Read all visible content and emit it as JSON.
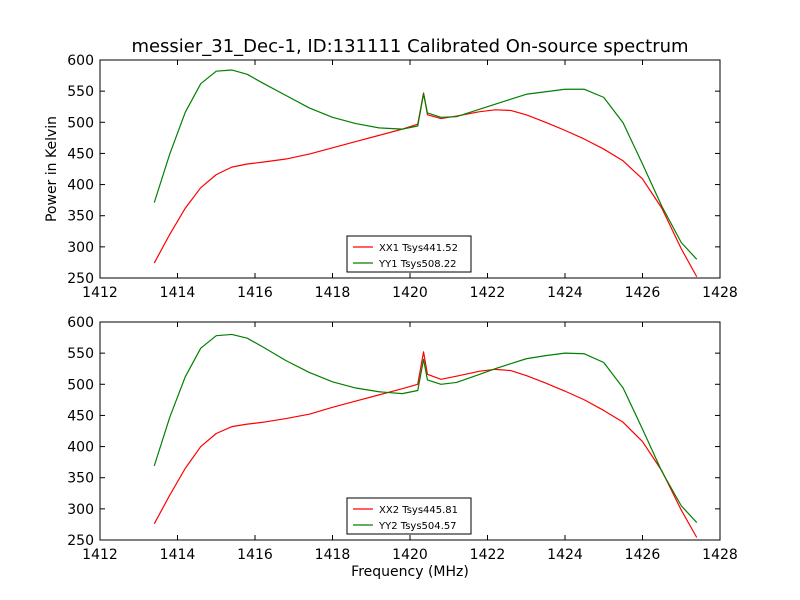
{
  "chart_data": [
    {
      "type": "line",
      "title": "messier_31_Dec-1, ID:131111 Calibrated On-source spectrum",
      "xlabel": "",
      "ylabel": "Power in Kelvin",
      "xlim": [
        1412,
        1428
      ],
      "ylim": [
        250,
        600
      ],
      "xticks": [
        1412,
        1414,
        1416,
        1418,
        1420,
        1422,
        1424,
        1426,
        1428
      ],
      "yticks": [
        250,
        300,
        350,
        400,
        450,
        500,
        550,
        600
      ],
      "grid": false,
      "legend_position": "bottom-center",
      "series": [
        {
          "name": "XX1 Tsys441.52",
          "color": "#ff0000",
          "x": [
            1413.4,
            1413.8,
            1414.2,
            1414.6,
            1415.0,
            1415.4,
            1415.8,
            1416.2,
            1416.8,
            1417.4,
            1418.0,
            1418.6,
            1419.2,
            1419.8,
            1420.2,
            1420.35,
            1420.45,
            1420.8,
            1421.2,
            1421.8,
            1422.2,
            1422.6,
            1423.0,
            1423.5,
            1424.0,
            1424.5,
            1425.0,
            1425.5,
            1426.0,
            1426.5,
            1427.0,
            1427.4
          ],
          "y": [
            274,
            320,
            362,
            395,
            416,
            428,
            433,
            436,
            441,
            449,
            459,
            469,
            479,
            489,
            497,
            547,
            512,
            506,
            510,
            517,
            520,
            519,
            512,
            500,
            487,
            473,
            457,
            438,
            409,
            362,
            297,
            252
          ]
        },
        {
          "name": "YY1 Tsys508.22",
          "color": "#008000",
          "x": [
            1413.4,
            1413.8,
            1414.2,
            1414.6,
            1415.0,
            1415.4,
            1415.8,
            1416.2,
            1416.8,
            1417.4,
            1418.0,
            1418.6,
            1419.2,
            1419.8,
            1420.2,
            1420.35,
            1420.45,
            1420.8,
            1421.2,
            1421.8,
            1422.2,
            1422.6,
            1423.0,
            1423.5,
            1424.0,
            1424.5,
            1425.0,
            1425.5,
            1426.0,
            1426.5,
            1427.0,
            1427.4
          ],
          "y": [
            371,
            449,
            516,
            562,
            582,
            584,
            577,
            563,
            543,
            523,
            508,
            498,
            491,
            489,
            494,
            546,
            515,
            508,
            509,
            521,
            529,
            537,
            545,
            549,
            553,
            553,
            540,
            499,
            433,
            365,
            307,
            280
          ]
        }
      ]
    },
    {
      "type": "line",
      "title": "",
      "xlabel": "Frequency (MHz)",
      "ylabel": "",
      "xlim": [
        1412,
        1428
      ],
      "ylim": [
        250,
        600
      ],
      "xticks": [
        1412,
        1414,
        1416,
        1418,
        1420,
        1422,
        1424,
        1426,
        1428
      ],
      "yticks": [
        250,
        300,
        350,
        400,
        450,
        500,
        550,
        600
      ],
      "grid": false,
      "legend_position": "bottom-center",
      "series": [
        {
          "name": "XX2 Tsys445.81",
          "color": "#ff0000",
          "x": [
            1413.4,
            1413.8,
            1414.2,
            1414.6,
            1415.0,
            1415.4,
            1415.8,
            1416.2,
            1416.8,
            1417.4,
            1418.0,
            1418.6,
            1419.2,
            1419.8,
            1420.2,
            1420.35,
            1420.45,
            1420.8,
            1421.2,
            1421.8,
            1422.2,
            1422.6,
            1423.0,
            1423.5,
            1424.0,
            1424.5,
            1425.0,
            1425.5,
            1426.0,
            1426.5,
            1427.0,
            1427.4
          ],
          "y": [
            276,
            322,
            365,
            400,
            421,
            432,
            436,
            439,
            445,
            452,
            463,
            473,
            483,
            493,
            500,
            552,
            516,
            508,
            513,
            521,
            524,
            522,
            514,
            502,
            489,
            475,
            458,
            439,
            408,
            361,
            298,
            254
          ]
        },
        {
          "name": "YY2 Tsys504.57",
          "color": "#008000",
          "x": [
            1413.4,
            1413.8,
            1414.2,
            1414.6,
            1415.0,
            1415.4,
            1415.8,
            1416.2,
            1416.8,
            1417.4,
            1418.0,
            1418.6,
            1419.2,
            1419.8,
            1420.2,
            1420.35,
            1420.45,
            1420.8,
            1421.2,
            1421.8,
            1422.2,
            1422.6,
            1423.0,
            1423.5,
            1424.0,
            1424.5,
            1425.0,
            1425.5,
            1426.0,
            1426.5,
            1427.0,
            1427.4
          ],
          "y": [
            369,
            447,
            512,
            558,
            578,
            580,
            574,
            560,
            538,
            519,
            504,
            494,
            488,
            485,
            490,
            540,
            507,
            500,
            503,
            516,
            525,
            533,
            541,
            546,
            550,
            549,
            535,
            494,
            428,
            360,
            305,
            278
          ]
        }
      ]
    }
  ]
}
